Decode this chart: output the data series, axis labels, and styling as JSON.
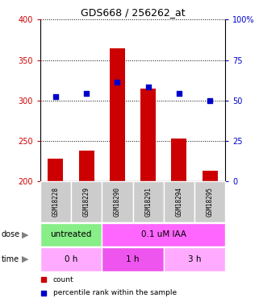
{
  "title": "GDS668 / 256262_at",
  "samples": [
    "GSM18228",
    "GSM18229",
    "GSM18290",
    "GSM18291",
    "GSM18294",
    "GSM18295"
  ],
  "bar_values": [
    228,
    238,
    365,
    315,
    253,
    213
  ],
  "bar_base": 200,
  "dot_values": [
    305,
    309,
    323,
    317,
    309,
    300
  ],
  "left_ylim": [
    200,
    400
  ],
  "left_yticks": [
    200,
    250,
    300,
    350,
    400
  ],
  "right_ylim": [
    0,
    100
  ],
  "right_yticks": [
    0,
    25,
    50,
    75,
    100
  ],
  "bar_color": "#cc0000",
  "dot_color": "#0000cc",
  "dose_labels": [
    {
      "label": "untreated",
      "span": [
        0,
        2
      ],
      "color": "#88ee88"
    },
    {
      "label": "0.1 uM IAA",
      "span": [
        2,
        6
      ],
      "color": "#ff66ff"
    }
  ],
  "time_labels": [
    {
      "label": "0 h",
      "span": [
        0,
        2
      ],
      "color": "#ffaaff"
    },
    {
      "label": "1 h",
      "span": [
        2,
        4
      ],
      "color": "#ee55ee"
    },
    {
      "label": "3 h",
      "span": [
        4,
        6
      ],
      "color": "#ffaaff"
    }
  ],
  "tick_label_color_left": "#cc0000",
  "tick_label_color_right": "#0000cc",
  "sample_bg_color": "#cccccc",
  "legend_items": [
    {
      "label": "count",
      "color": "#cc0000"
    },
    {
      "label": "percentile rank within the sample",
      "color": "#0000cc"
    }
  ]
}
